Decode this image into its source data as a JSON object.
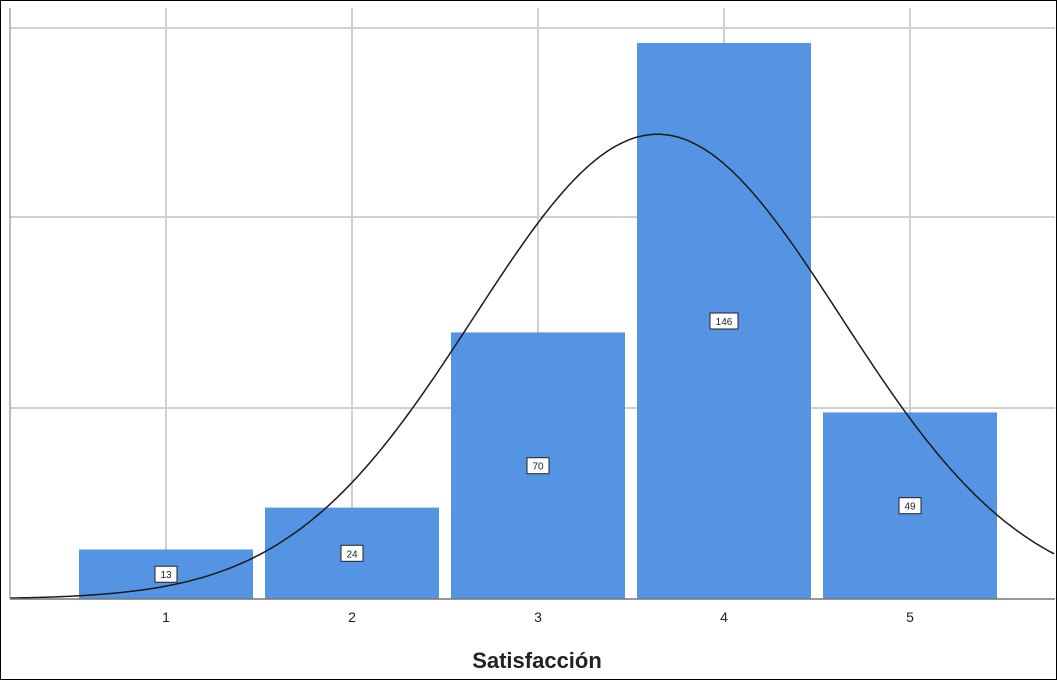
{
  "chart_data": {
    "type": "bar",
    "xlabel": "Satisfacción",
    "ylabel": "",
    "categories": [
      "1",
      "2",
      "3",
      "4",
      "5"
    ],
    "values": [
      13,
      24,
      70,
      146,
      49
    ],
    "data_labels": [
      "13",
      "24",
      "70",
      "146",
      "49"
    ],
    "ylim": [
      0,
      150
    ],
    "grid": true,
    "overlay": "normal distribution curve",
    "bar_color": "#5593E3",
    "curve_color": "#1a1a1a",
    "grid_color": "#d0d0d0"
  }
}
